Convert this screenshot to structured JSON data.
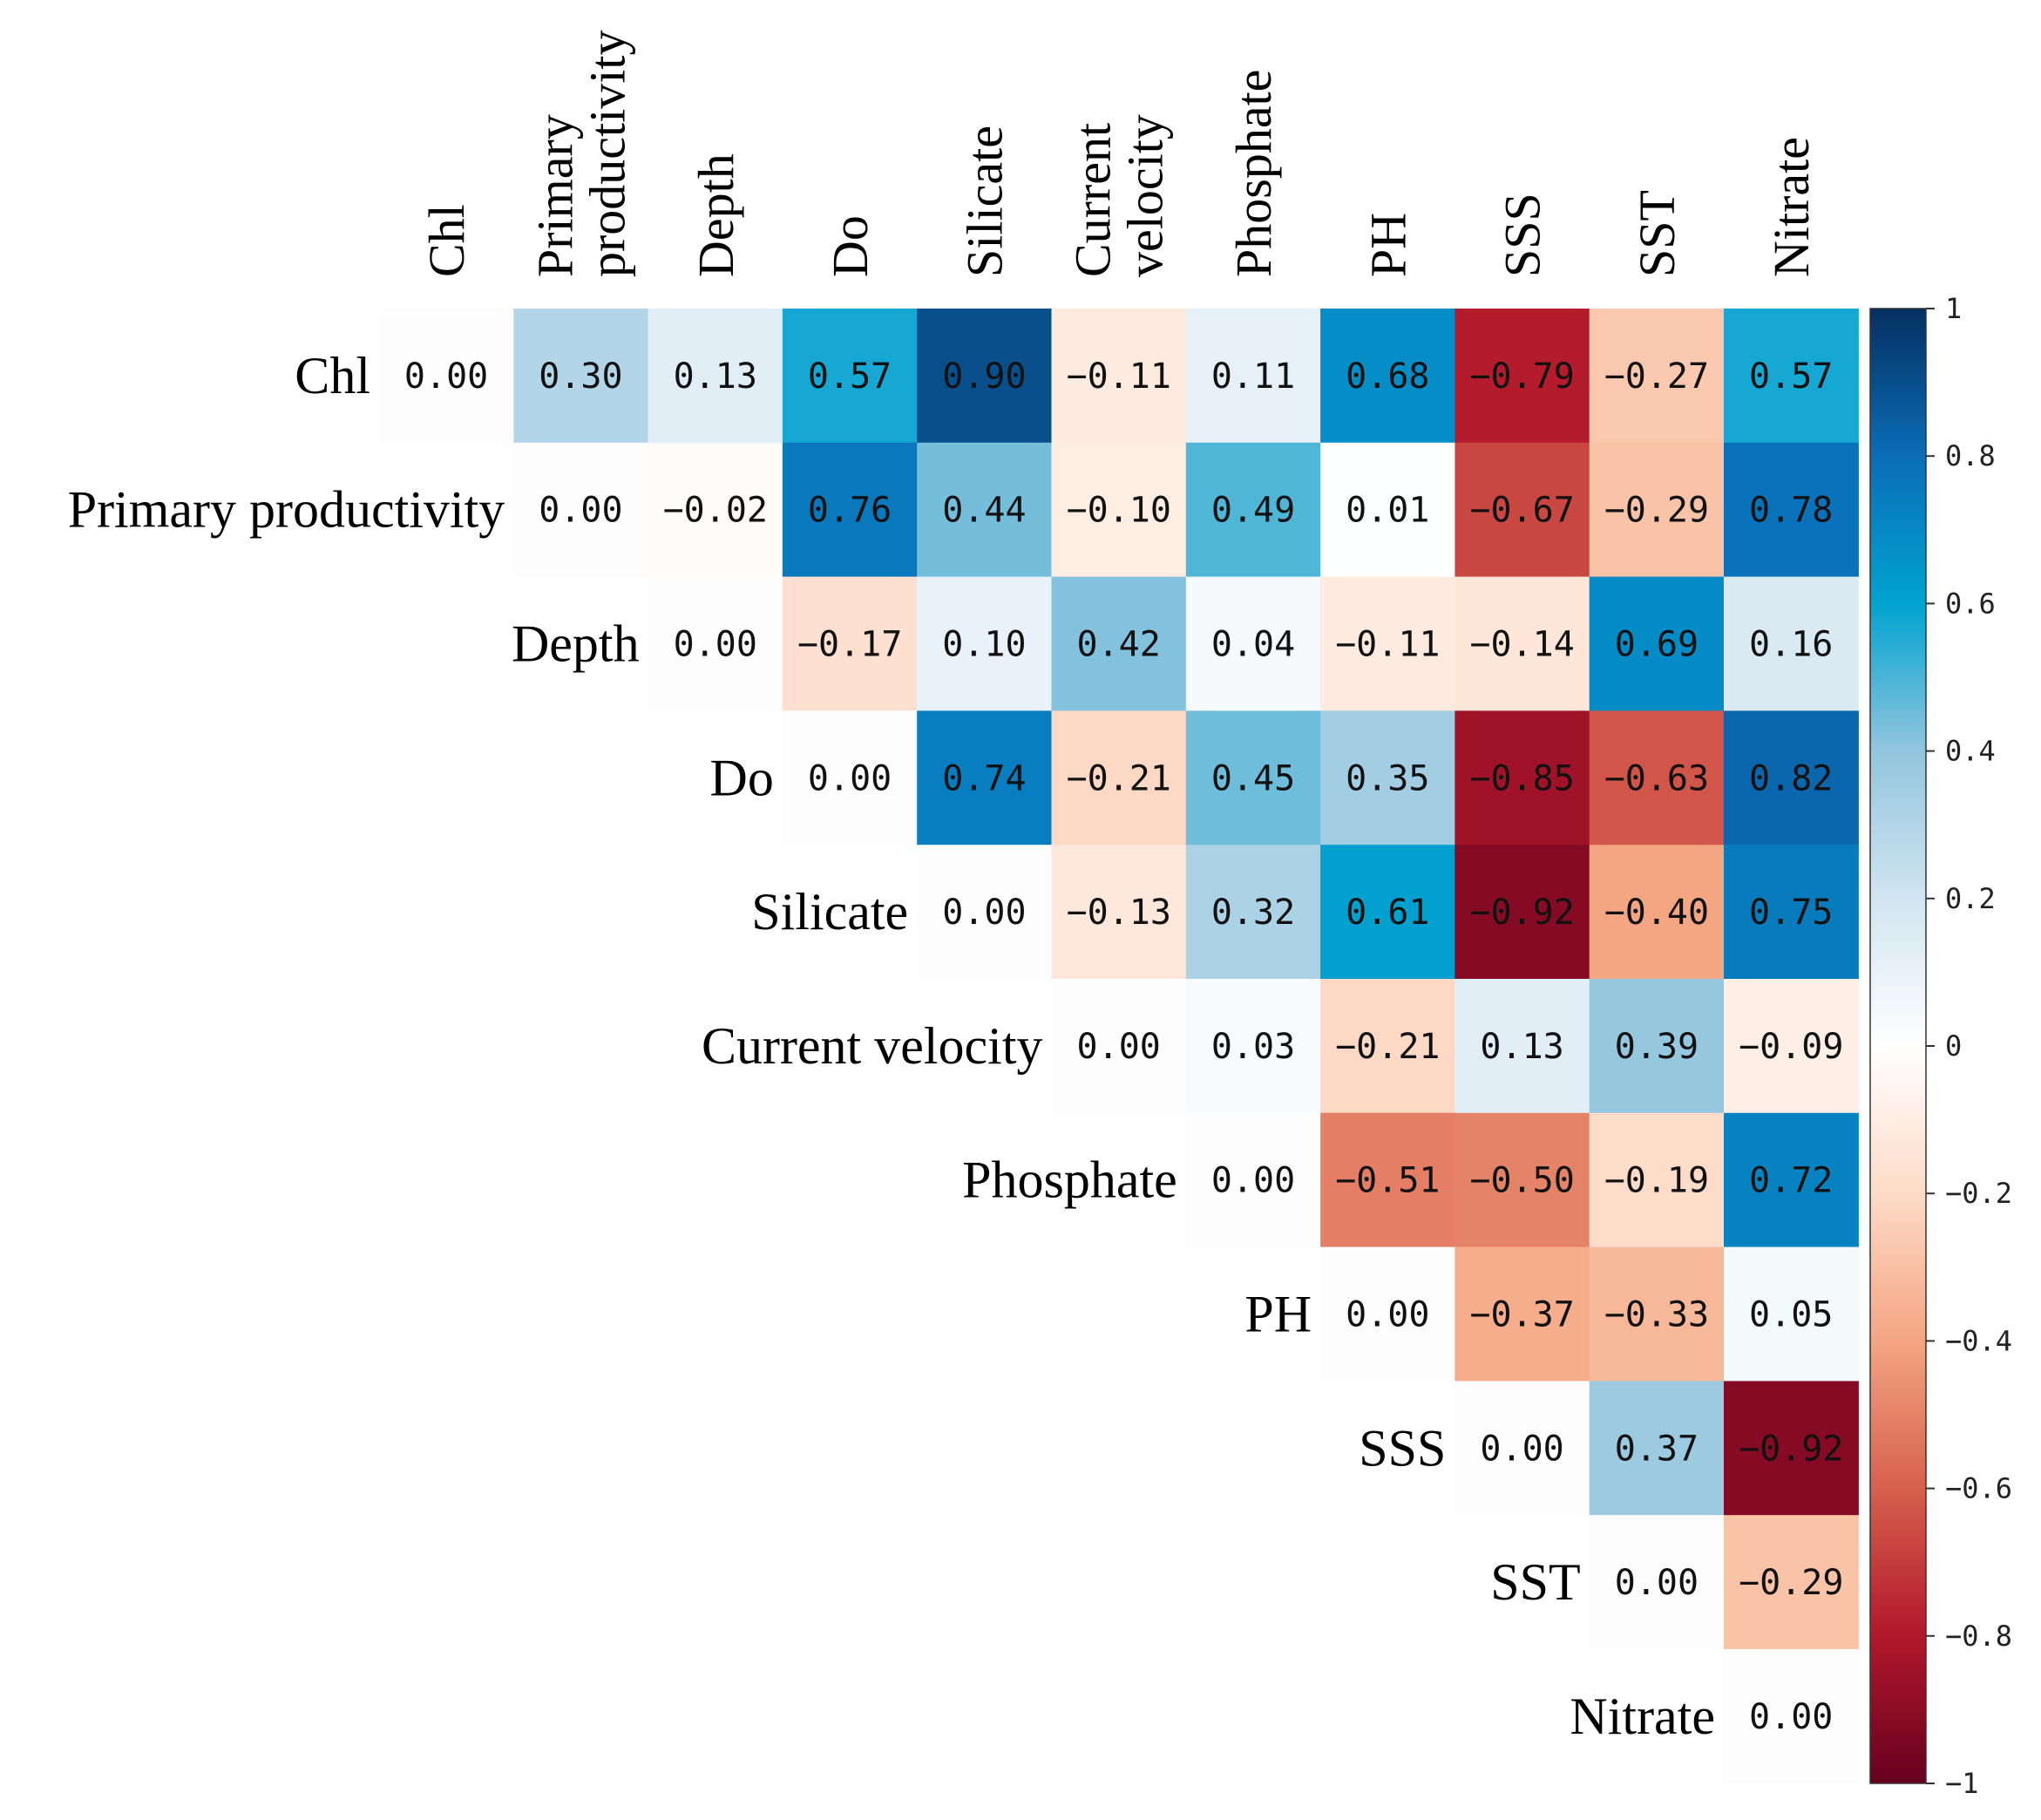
{
  "chart_data": {
    "type": "heatmap",
    "subtype": "upper-triangular correlation matrix",
    "variables": [
      "Chl",
      "Primary productivity",
      "Depth",
      "Do",
      "Silicate",
      "Current velocity",
      "Phosphate",
      "PH",
      "SSS",
      "SST",
      "Nitrate"
    ],
    "column_labels": [
      [
        "Chl"
      ],
      [
        "Primary",
        "productivity"
      ],
      [
        "Depth"
      ],
      [
        "Do"
      ],
      [
        "Silicate"
      ],
      [
        "Current",
        "velocity"
      ],
      [
        "Phosphate"
      ],
      [
        "PH"
      ],
      [
        "SSS"
      ],
      [
        "SST"
      ],
      [
        "Nitrate"
      ]
    ],
    "matrix": [
      [
        0.0,
        0.3,
        0.13,
        0.57,
        0.9,
        -0.11,
        0.11,
        0.68,
        -0.79,
        -0.27,
        0.57
      ],
      [
        null,
        0.0,
        -0.02,
        0.76,
        0.44,
        -0.1,
        0.49,
        0.01,
        -0.67,
        -0.29,
        0.78
      ],
      [
        null,
        null,
        0.0,
        -0.17,
        0.1,
        0.42,
        0.04,
        -0.11,
        -0.14,
        0.69,
        0.16
      ],
      [
        null,
        null,
        null,
        0.0,
        0.74,
        -0.21,
        0.45,
        0.35,
        -0.85,
        -0.63,
        0.82
      ],
      [
        null,
        null,
        null,
        null,
        0.0,
        -0.13,
        0.32,
        0.61,
        -0.92,
        -0.4,
        0.75
      ],
      [
        null,
        null,
        null,
        null,
        null,
        0.0,
        0.03,
        -0.21,
        0.13,
        0.39,
        -0.09
      ],
      [
        null,
        null,
        null,
        null,
        null,
        null,
        0.0,
        -0.51,
        -0.5,
        -0.19,
        0.72
      ],
      [
        null,
        null,
        null,
        null,
        null,
        null,
        null,
        0.0,
        -0.37,
        -0.33,
        0.05
      ],
      [
        null,
        null,
        null,
        null,
        null,
        null,
        null,
        null,
        0.0,
        0.37,
        -0.92
      ],
      [
        null,
        null,
        null,
        null,
        null,
        null,
        null,
        null,
        null,
        0.0,
        -0.29
      ],
      [
        null,
        null,
        null,
        null,
        null,
        null,
        null,
        null,
        null,
        null,
        0.0
      ]
    ],
    "colorbar": {
      "range": [
        -1,
        1
      ],
      "ticks": [
        1,
        0.8,
        0.6,
        0.4,
        0.2,
        0,
        -0.2,
        -0.4,
        -0.6,
        -0.8,
        -1
      ],
      "tick_labels": [
        "1",
        "0.8",
        "0.6",
        "0.4",
        "0.2",
        "0",
        "−0.2",
        "−0.4",
        "−0.6",
        "−0.8",
        "−1"
      ],
      "colormap": "RdBu",
      "colors": {
        "neg_1": "#67001f",
        "neg_0_8": "#b2182b",
        "neg_0_6": "#d6604d",
        "neg_0_4": "#f4a582",
        "neg_0_2": "#fddbc7",
        "zero": "#ffffff",
        "pos_0_2": "#d1e5f0",
        "pos_0_4": "#92c5de",
        "pos_0_6": "#00a3d0",
        "pos_0_8": "#0b6db7",
        "pos_1": "#053061"
      }
    }
  }
}
